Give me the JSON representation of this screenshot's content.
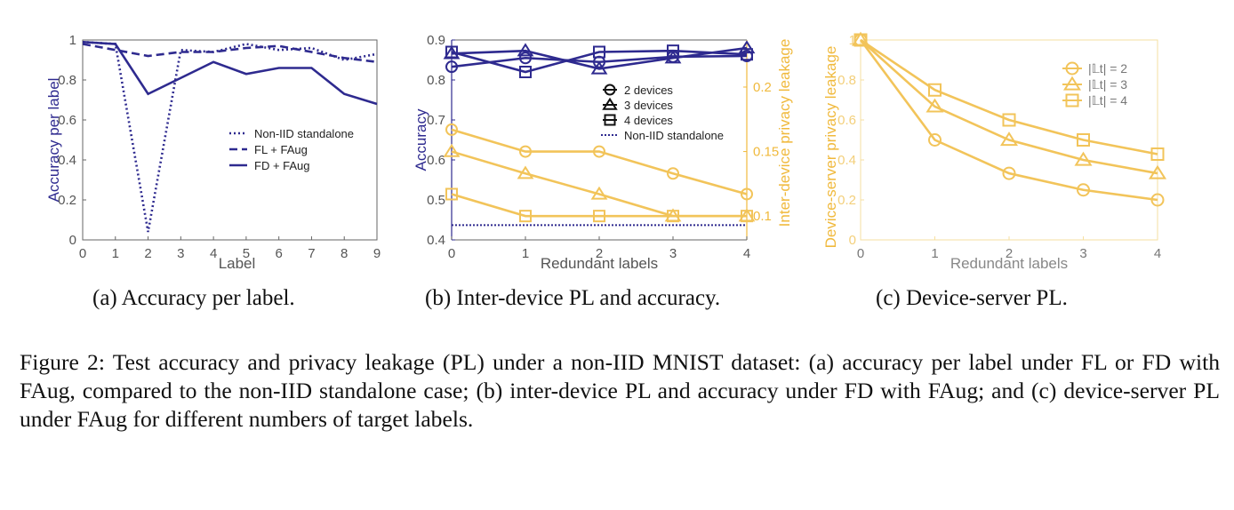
{
  "colors": {
    "navy": "#2e2a8f",
    "gold": "#f2c45a",
    "gold_axis": "#f0b93c",
    "grid_text": "#555555",
    "gray_label": "#777777"
  },
  "chart_data": [
    {
      "type": "line",
      "caption": "(a) Accuracy per label.",
      "xlabel": "Label",
      "ylabel": "Accuracy per label",
      "xlim": [
        0,
        9
      ],
      "ylim": [
        0,
        1
      ],
      "x_ticks": [
        "0",
        "1",
        "2",
        "3",
        "4",
        "5",
        "6",
        "7",
        "8",
        "9"
      ],
      "y_ticks": [
        "0",
        "0.2",
        "0.4",
        "0.6",
        "0.8",
        "1"
      ],
      "legend": {
        "placement": "center-right",
        "entries": [
          "Non-IID standalone",
          "FL + FAug",
          "FD + FAug"
        ]
      },
      "x": [
        0,
        1,
        2,
        3,
        4,
        5,
        6,
        7,
        8,
        9
      ],
      "series": [
        {
          "name": "Non-IID standalone",
          "style": "dotted",
          "values": [
            0.99,
            0.98,
            0.04,
            0.95,
            0.94,
            0.98,
            0.95,
            0.96,
            0.9,
            0.93
          ]
        },
        {
          "name": "FL + FAug",
          "style": "dashed",
          "values": [
            0.98,
            0.95,
            0.92,
            0.94,
            0.94,
            0.96,
            0.97,
            0.94,
            0.91,
            0.89
          ]
        },
        {
          "name": "FD + FAug",
          "style": "solid",
          "values": [
            0.99,
            0.98,
            0.73,
            0.81,
            0.89,
            0.83,
            0.86,
            0.86,
            0.73,
            0.68
          ]
        }
      ]
    },
    {
      "type": "line",
      "caption": "(b) Inter-device PL and accuracy.",
      "xlabel": "Redundant labels",
      "ylabel_left": "Accuracy",
      "ylabel_right": "Inter-device privacy leakage",
      "xlim": [
        0,
        4
      ],
      "ylim_left": [
        0.4,
        0.9
      ],
      "ylim_right": [
        0.0815,
        0.2365
      ],
      "x_ticks": [
        "0",
        "1",
        "2",
        "3",
        "4"
      ],
      "y_ticks_left": [
        "0.4",
        "0.5",
        "0.6",
        "0.7",
        "0.8",
        "0.9"
      ],
      "y_ticks_right": [
        "0.1",
        "0.15",
        "0.2"
      ],
      "legend": {
        "placement": "right",
        "entries": [
          "2 devices",
          "3 devices",
          "4 devices",
          "Non-IID standalone"
        ]
      },
      "x": [
        0,
        1,
        2,
        3,
        4
      ],
      "accuracy_series": [
        {
          "name": "2 devices",
          "marker": "circle",
          "values": [
            0.833,
            0.855,
            0.845,
            0.858,
            0.86
          ]
        },
        {
          "name": "3 devices",
          "marker": "triangle",
          "values": [
            0.866,
            0.873,
            0.828,
            0.855,
            0.88
          ]
        },
        {
          "name": "4 devices",
          "marker": "square",
          "values": [
            0.87,
            0.82,
            0.87,
            0.873,
            0.864
          ]
        }
      ],
      "standalone_accuracy": {
        "name": "Non-IID standalone",
        "value": 0.437
      },
      "leakage_series": [
        {
          "marker": "circle",
          "values": [
            0.167,
            0.15,
            0.15,
            0.133,
            0.117
          ]
        },
        {
          "marker": "triangle",
          "values": [
            0.15,
            0.133,
            0.117,
            0.1,
            0.1
          ]
        },
        {
          "marker": "square",
          "values": [
            0.117,
            0.1,
            0.1,
            0.1,
            0.1
          ]
        }
      ]
    },
    {
      "type": "line",
      "caption": "(c) Device-server PL.",
      "xlabel": "Redundant labels",
      "ylabel": "Device-server privacy leakage",
      "xlim": [
        0,
        4
      ],
      "ylim": [
        0,
        1
      ],
      "x_ticks": [
        "0",
        "1",
        "2",
        "3",
        "4"
      ],
      "y_ticks": [
        "0",
        "0.2",
        "0.4",
        "0.6",
        "0.8",
        "1"
      ],
      "legend": {
        "placement": "top-right",
        "entries": [
          "|𝕃t| = 2",
          "|𝕃t| = 3",
          "|𝕃t| = 4"
        ]
      },
      "x": [
        0,
        1,
        2,
        3,
        4
      ],
      "series": [
        {
          "name": "|𝕃t| = 2",
          "marker": "circle",
          "values": [
            1.0,
            0.5,
            0.333,
            0.25,
            0.2
          ]
        },
        {
          "name": "|𝕃t| = 3",
          "marker": "triangle",
          "values": [
            1.0,
            0.667,
            0.5,
            0.4,
            0.333
          ]
        },
        {
          "name": "|𝕃t| = 4",
          "marker": "square",
          "values": [
            1.0,
            0.75,
            0.6,
            0.5,
            0.429
          ]
        }
      ]
    }
  ],
  "figure_caption": "Figure 2: Test accuracy and privacy leakage (PL) under a non-IID MNIST dataset: (a) accuracy per label under FL or FD with FAug, compared to the non-IID standalone case; (b) inter-device PL and accuracy under FD with FAug; and (c) device-server PL under FAug for different numbers of target labels."
}
